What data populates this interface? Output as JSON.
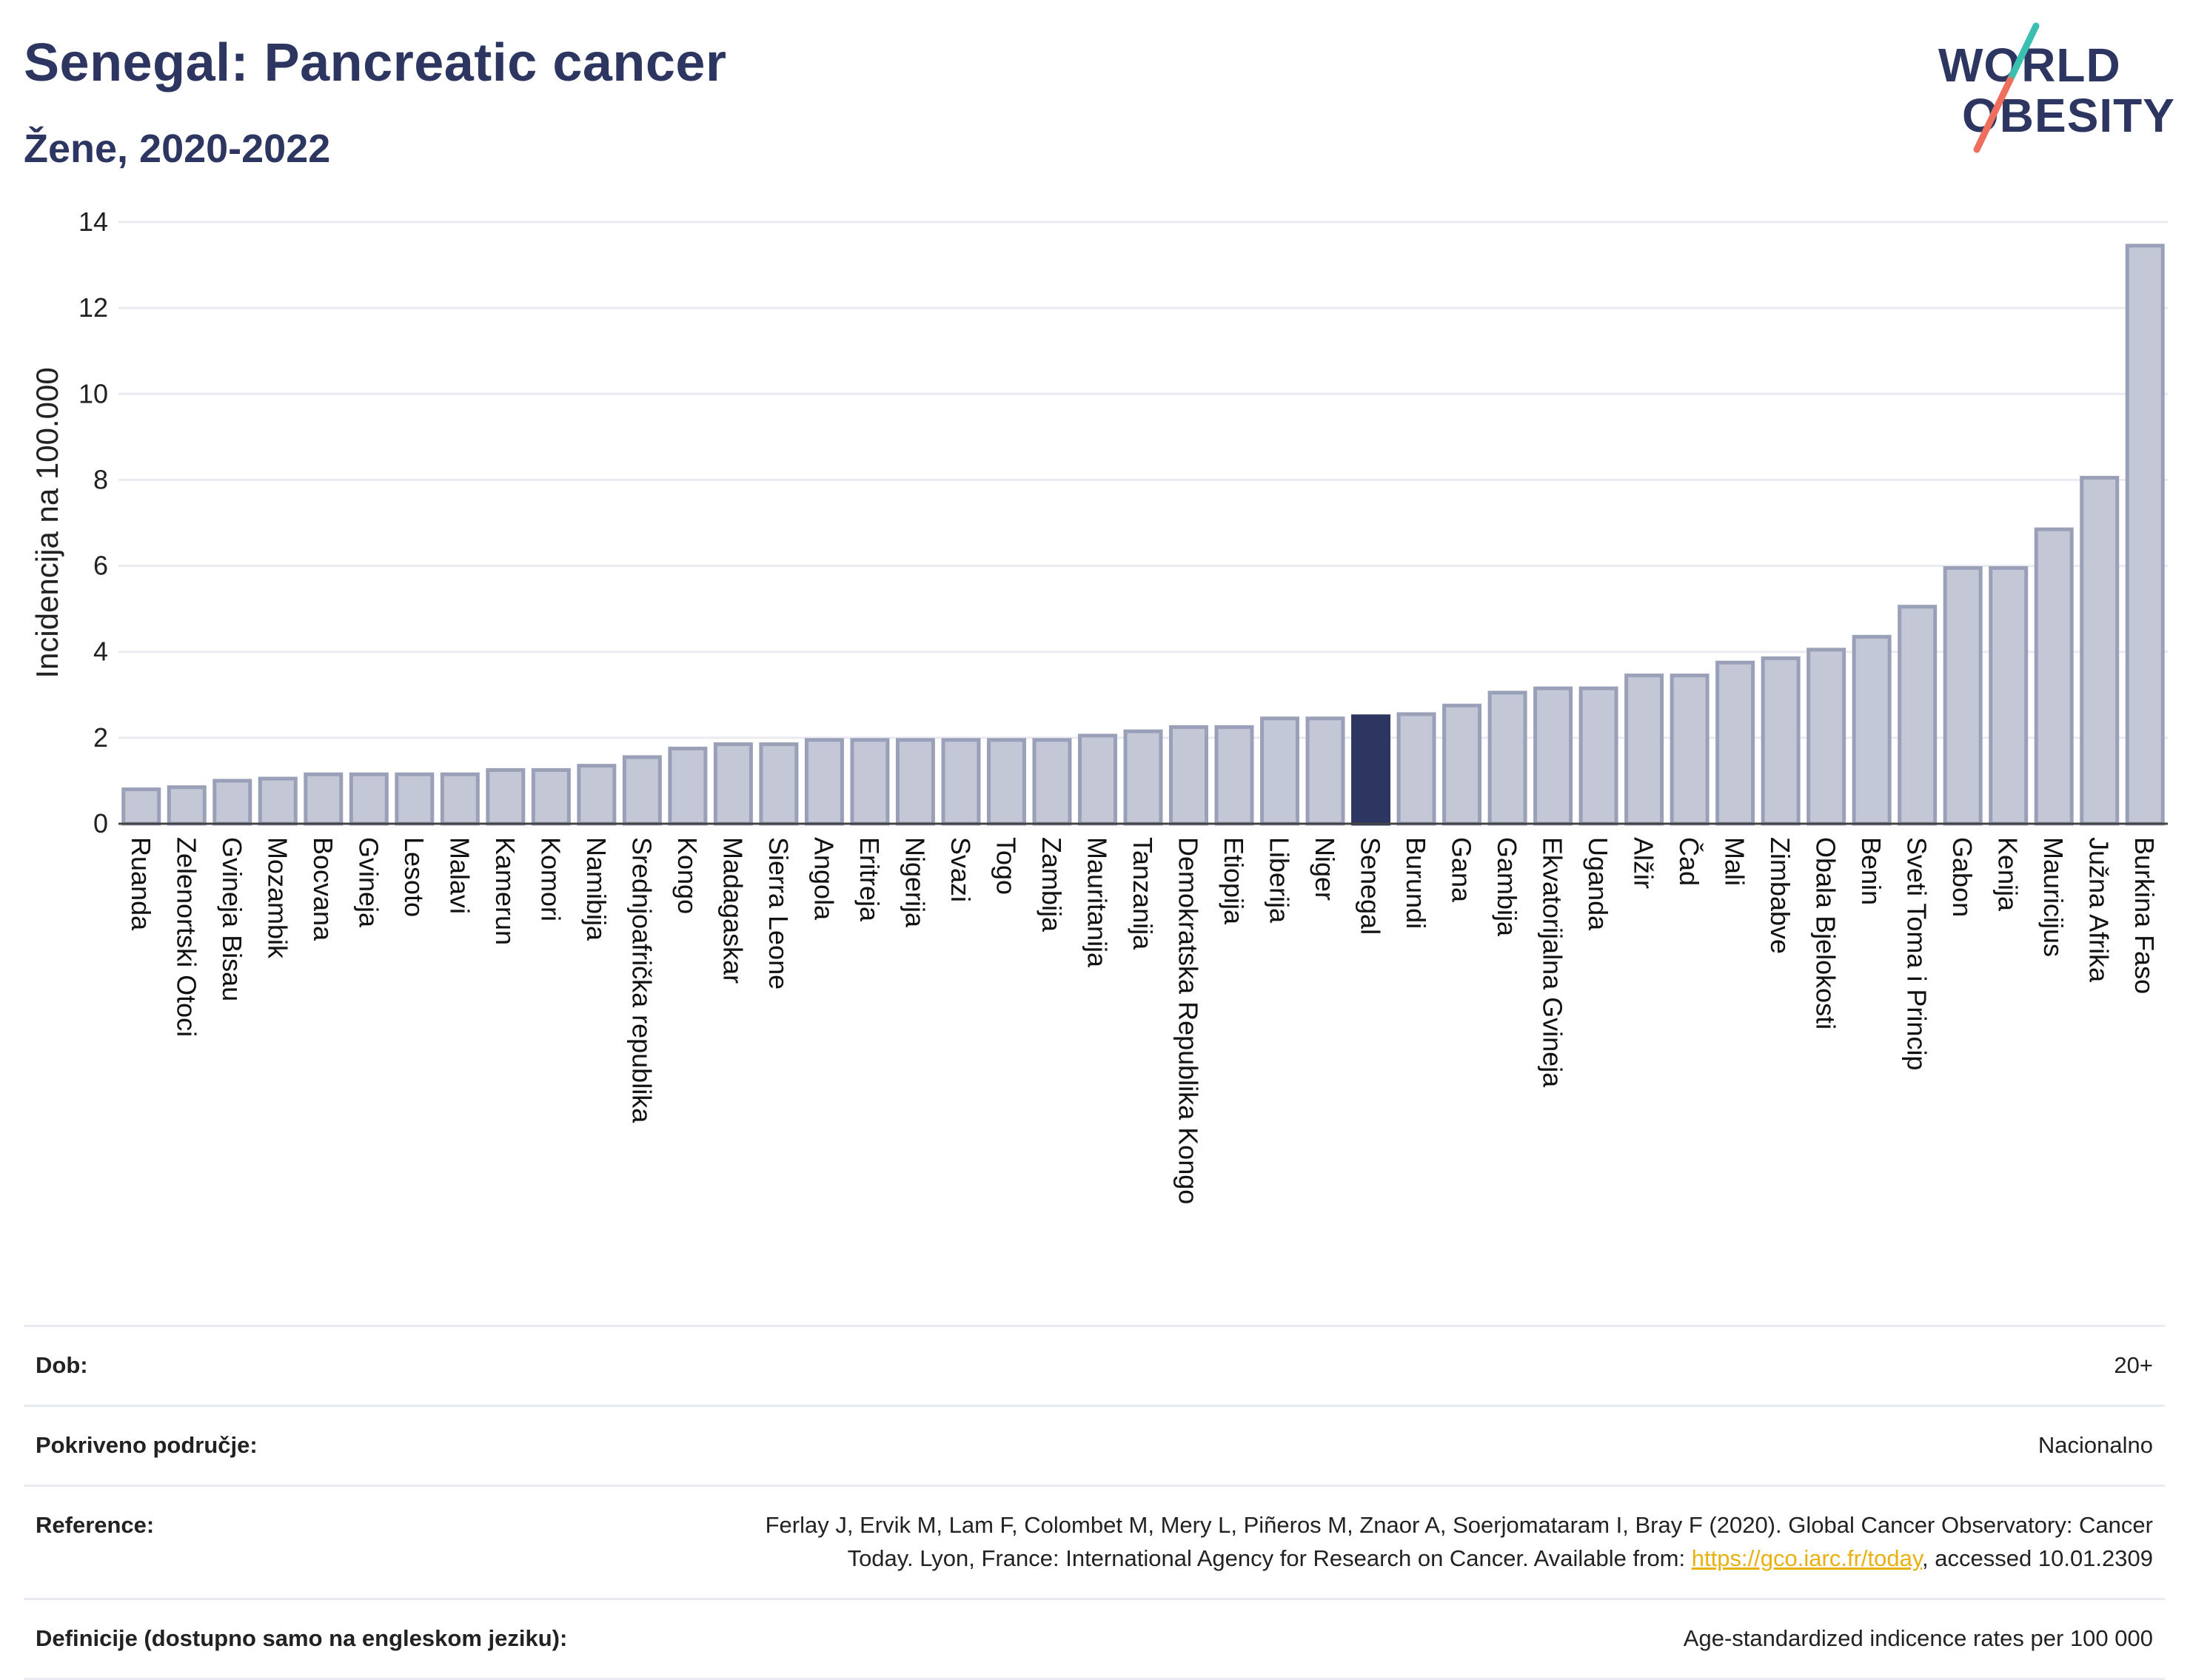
{
  "header": {
    "title": "Senegal: Pancreatic cancer",
    "subtitle": "Žene, 2020-2022"
  },
  "logo": {
    "line1": "WORLD",
    "line2": "OBESITY"
  },
  "colors": {
    "bar": "#c3c7d6",
    "bar_stroke": "#9aa0b8",
    "highlight": "#2c3660",
    "grid": "#e9ebf0"
  },
  "chart_data": {
    "type": "bar",
    "ylabel": "Incidencija na 100.000",
    "ylim": [
      0,
      14
    ],
    "yticks": [
      0,
      2,
      4,
      6,
      8,
      10,
      12,
      14
    ],
    "highlight": "Senegal",
    "grid": true,
    "categories": [
      "Ruanda",
      "Zelenortski Otoci",
      "Gvineja Bisau",
      "Mozambik",
      "Bocvana",
      "Gvineja",
      "Lesoto",
      "Malavi",
      "Kamerun",
      "Komori",
      "Namibija",
      "Srednjoafrička republika",
      "Kongo",
      "Madagaskar",
      "Sierra Leone",
      "Angola",
      "Eritreja",
      "Nigerija",
      "Svazi",
      "Togo",
      "Zambija",
      "Mauritanija",
      "Tanzanija",
      "Demokratska Republika Kongo",
      "Etiopija",
      "Liberija",
      "Niger",
      "Senegal",
      "Burundi",
      "Gana",
      "Gambija",
      "Ekvatorijalna Gvineja",
      "Uganda",
      "Alžir",
      "Čad",
      "Mali",
      "Zimbabve",
      "Obala Bjelokosti",
      "Benin",
      "Sveti Toma i Princip",
      "Gabon",
      "Kenija",
      "Mauricijus",
      "Južna Afrika",
      "Burkina Faso"
    ],
    "values": [
      0.8,
      0.85,
      1.0,
      1.05,
      1.15,
      1.15,
      1.15,
      1.15,
      1.25,
      1.25,
      1.35,
      1.55,
      1.75,
      1.85,
      1.85,
      1.95,
      1.95,
      1.95,
      1.95,
      1.95,
      1.95,
      2.05,
      2.15,
      2.25,
      2.25,
      2.45,
      2.45,
      2.5,
      2.55,
      2.75,
      3.05,
      3.15,
      3.15,
      3.45,
      3.45,
      3.75,
      3.85,
      4.05,
      4.35,
      5.05,
      5.95,
      5.95,
      6.85,
      8.05,
      13.45
    ]
  },
  "info": {
    "age_label": "Dob:",
    "age_value": "20+",
    "coverage_label": "Pokriveno područje:",
    "coverage_value": "Nacionalno",
    "reference_label": "Reference:",
    "reference_line1": "Ferlay J, Ervik M, Lam F, Colombet M, Mery L, Piñeros M, Znaor A, Soerjomataram I, Bray F (2020). Global Cancer Observatory: Cancer",
    "reference_line2_pre": "Today. Lyon, France: International Agency for Research on Cancer. Available from: ",
    "reference_link": "https://gco.iarc.fr/today",
    "reference_line2_post": ", accessed 10.01.2309",
    "definitions_label": "Definicije (dostupno samo na engleskom jeziku):",
    "definitions_value": "Age-standardized indicence rates per 100 000"
  }
}
